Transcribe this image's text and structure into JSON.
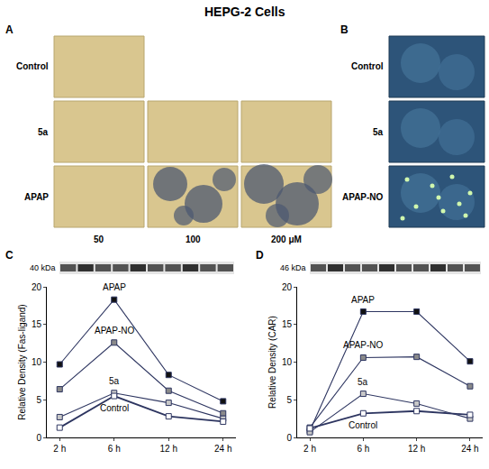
{
  "title": "HEPG-2 Cells",
  "panels": [
    {
      "label": "A",
      "columns": [
        "50",
        "100",
        "200 μM"
      ],
      "rows": [
        {
          "label": "Control",
          "images": [
            "50"
          ]
        },
        {
          "label": "5a",
          "images": [
            "50",
            "100",
            "200 μM"
          ]
        },
        {
          "label": "APAP",
          "images": [
            "50",
            "100",
            "200 μM"
          ]
        }
      ]
    },
    {
      "label": "B",
      "rows": [
        {
          "label": "Control"
        },
        {
          "label": "5a"
        },
        {
          "label": "APAP-NO"
        }
      ]
    }
  ],
  "chart_data": [
    {
      "type": "line",
      "panel": "C",
      "blot_label": "40 kDa",
      "y_label": "Relative Density (Fas-ligand)",
      "categories": [
        "2 h",
        "6 h",
        "12 h",
        "24 h"
      ],
      "ylim": [
        0,
        20
      ],
      "yticks": [
        0,
        5,
        10,
        15,
        20
      ],
      "grid": false,
      "marker": "square",
      "series": [
        {
          "name": "APAP",
          "color": "#111111",
          "values": [
            9.7,
            18.3,
            8.3,
            4.8
          ]
        },
        {
          "name": "APAP-NO",
          "color": "#8a8a8a",
          "values": [
            6.4,
            12.6,
            6.2,
            3.2
          ]
        },
        {
          "name": "5a",
          "color": "#c8c8c8",
          "values": [
            2.7,
            5.9,
            4.6,
            2.5
          ]
        },
        {
          "name": "Control",
          "color": "#ffffff",
          "values": [
            1.3,
            5.5,
            2.8,
            2.1
          ]
        }
      ]
    },
    {
      "type": "line",
      "panel": "D",
      "blot_label": "46 kDa",
      "y_label": "Relative Density (CAR)",
      "categories": [
        "2 h",
        "6 h",
        "12 h",
        "24 h"
      ],
      "ylim": [
        0,
        20
      ],
      "yticks": [
        0,
        5,
        10,
        15,
        20
      ],
      "grid": false,
      "marker": "square",
      "series": [
        {
          "name": "APAP",
          "color": "#111111",
          "values": [
            0.9,
            16.7,
            16.7,
            10.1
          ]
        },
        {
          "name": "APAP-NO",
          "color": "#8a8a8a",
          "values": [
            1.3,
            10.6,
            10.7,
            6.8
          ]
        },
        {
          "name": "5a",
          "color": "#c8c8c8",
          "values": [
            0.7,
            5.8,
            4.5,
            2.5
          ]
        },
        {
          "name": "Control",
          "color": "#ffffff",
          "values": [
            1.2,
            3.2,
            3.5,
            3.0
          ]
        }
      ]
    }
  ]
}
